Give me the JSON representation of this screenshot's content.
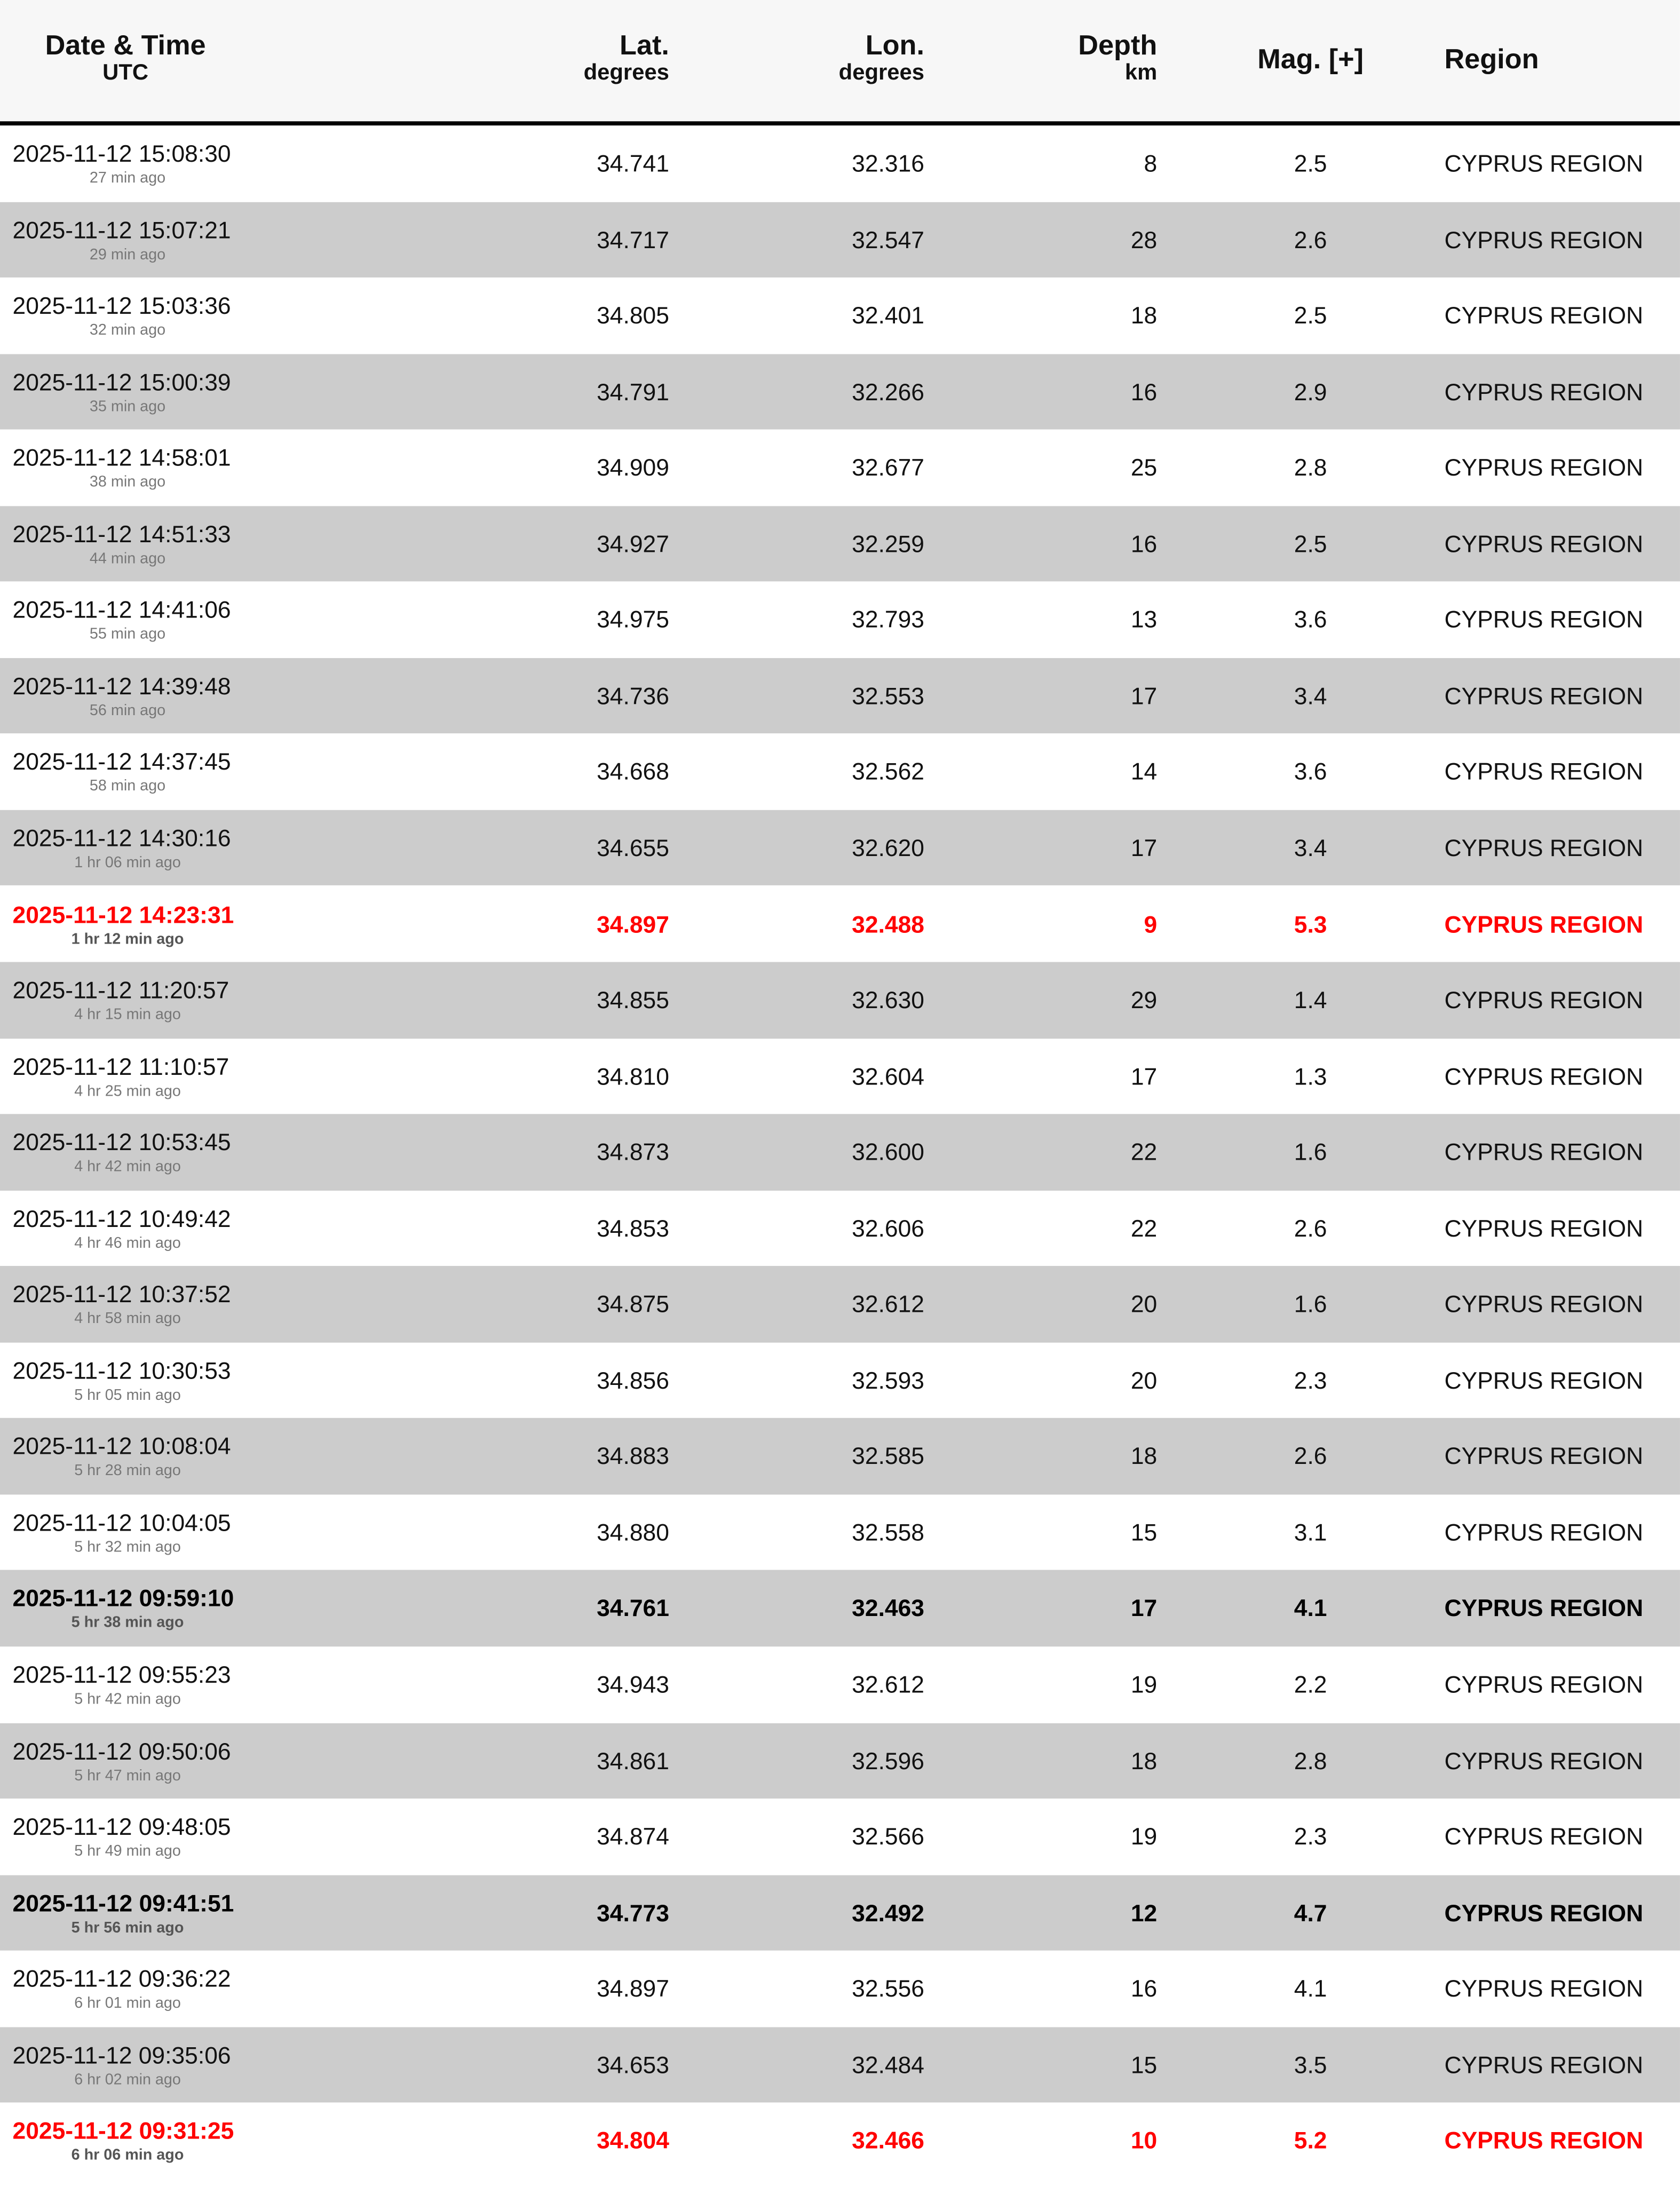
{
  "header": {
    "datetime": "Date & Time",
    "datetime_sub": "UTC",
    "lat": "Lat.",
    "lat_sub": "degrees",
    "lon": "Lon.",
    "lon_sub": "degrees",
    "depth": "Depth",
    "depth_sub": "km",
    "mag": "Mag. [+]",
    "region": "Region"
  },
  "colors": {
    "highlight_red": "#ff0000",
    "alt_row": "#cccccc",
    "header_bg": "#f7f7f7"
  },
  "rows": [
    {
      "time": "2025-11-12 15:08:30",
      "ago": "27 min ago",
      "lat": "34.741",
      "lon": "32.316",
      "depth": "8",
      "mag": "2.5",
      "region": "CYPRUS REGION",
      "style": "normal"
    },
    {
      "time": "2025-11-12 15:07:21",
      "ago": "29 min ago",
      "lat": "34.717",
      "lon": "32.547",
      "depth": "28",
      "mag": "2.6",
      "region": "CYPRUS REGION",
      "style": "normal"
    },
    {
      "time": "2025-11-12 15:03:36",
      "ago": "32 min ago",
      "lat": "34.805",
      "lon": "32.401",
      "depth": "18",
      "mag": "2.5",
      "region": "CYPRUS REGION",
      "style": "normal"
    },
    {
      "time": "2025-11-12 15:00:39",
      "ago": "35 min ago",
      "lat": "34.791",
      "lon": "32.266",
      "depth": "16",
      "mag": "2.9",
      "region": "CYPRUS REGION",
      "style": "normal"
    },
    {
      "time": "2025-11-12 14:58:01",
      "ago": "38 min ago",
      "lat": "34.909",
      "lon": "32.677",
      "depth": "25",
      "mag": "2.8",
      "region": "CYPRUS REGION",
      "style": "normal"
    },
    {
      "time": "2025-11-12 14:51:33",
      "ago": "44 min ago",
      "lat": "34.927",
      "lon": "32.259",
      "depth": "16",
      "mag": "2.5",
      "region": "CYPRUS REGION",
      "style": "normal"
    },
    {
      "time": "2025-11-12 14:41:06",
      "ago": "55 min ago",
      "lat": "34.975",
      "lon": "32.793",
      "depth": "13",
      "mag": "3.6",
      "region": "CYPRUS REGION",
      "style": "normal"
    },
    {
      "time": "2025-11-12 14:39:48",
      "ago": "56 min ago",
      "lat": "34.736",
      "lon": "32.553",
      "depth": "17",
      "mag": "3.4",
      "region": "CYPRUS REGION",
      "style": "normal"
    },
    {
      "time": "2025-11-12 14:37:45",
      "ago": "58 min ago",
      "lat": "34.668",
      "lon": "32.562",
      "depth": "14",
      "mag": "3.6",
      "region": "CYPRUS REGION",
      "style": "normal"
    },
    {
      "time": "2025-11-12 14:30:16",
      "ago": "1 hr 06 min ago",
      "lat": "34.655",
      "lon": "32.620",
      "depth": "17",
      "mag": "3.4",
      "region": "CYPRUS REGION",
      "style": "normal"
    },
    {
      "time": "2025-11-12 14:23:31",
      "ago": "1 hr 12 min ago",
      "lat": "34.897",
      "lon": "32.488",
      "depth": "9",
      "mag": "5.3",
      "region": "CYPRUS REGION",
      "style": "red"
    },
    {
      "time": "2025-11-12 11:20:57",
      "ago": "4 hr 15 min ago",
      "lat": "34.855",
      "lon": "32.630",
      "depth": "29",
      "mag": "1.4",
      "region": "CYPRUS REGION",
      "style": "normal"
    },
    {
      "time": "2025-11-12 11:10:57",
      "ago": "4 hr 25 min ago",
      "lat": "34.810",
      "lon": "32.604",
      "depth": "17",
      "mag": "1.3",
      "region": "CYPRUS REGION",
      "style": "normal"
    },
    {
      "time": "2025-11-12 10:53:45",
      "ago": "4 hr 42 min ago",
      "lat": "34.873",
      "lon": "32.600",
      "depth": "22",
      "mag": "1.6",
      "region": "CYPRUS REGION",
      "style": "normal"
    },
    {
      "time": "2025-11-12 10:49:42",
      "ago": "4 hr 46 min ago",
      "lat": "34.853",
      "lon": "32.606",
      "depth": "22",
      "mag": "2.6",
      "region": "CYPRUS REGION",
      "style": "normal"
    },
    {
      "time": "2025-11-12 10:37:52",
      "ago": "4 hr 58 min ago",
      "lat": "34.875",
      "lon": "32.612",
      "depth": "20",
      "mag": "1.6",
      "region": "CYPRUS REGION",
      "style": "normal"
    },
    {
      "time": "2025-11-12 10:30:53",
      "ago": "5 hr 05 min ago",
      "lat": "34.856",
      "lon": "32.593",
      "depth": "20",
      "mag": "2.3",
      "region": "CYPRUS REGION",
      "style": "normal"
    },
    {
      "time": "2025-11-12 10:08:04",
      "ago": "5 hr 28 min ago",
      "lat": "34.883",
      "lon": "32.585",
      "depth": "18",
      "mag": "2.6",
      "region": "CYPRUS REGION",
      "style": "normal"
    },
    {
      "time": "2025-11-12 10:04:05",
      "ago": "5 hr 32 min ago",
      "lat": "34.880",
      "lon": "32.558",
      "depth": "15",
      "mag": "3.1",
      "region": "CYPRUS REGION",
      "style": "normal"
    },
    {
      "time": "2025-11-12 09:59:10",
      "ago": "5 hr 38 min ago",
      "lat": "34.761",
      "lon": "32.463",
      "depth": "17",
      "mag": "4.1",
      "region": "CYPRUS REGION",
      "style": "bold"
    },
    {
      "time": "2025-11-12 09:55:23",
      "ago": "5 hr 42 min ago",
      "lat": "34.943",
      "lon": "32.612",
      "depth": "19",
      "mag": "2.2",
      "region": "CYPRUS REGION",
      "style": "normal"
    },
    {
      "time": "2025-11-12 09:50:06",
      "ago": "5 hr 47 min ago",
      "lat": "34.861",
      "lon": "32.596",
      "depth": "18",
      "mag": "2.8",
      "region": "CYPRUS REGION",
      "style": "normal"
    },
    {
      "time": "2025-11-12 09:48:05",
      "ago": "5 hr 49 min ago",
      "lat": "34.874",
      "lon": "32.566",
      "depth": "19",
      "mag": "2.3",
      "region": "CYPRUS REGION",
      "style": "normal"
    },
    {
      "time": "2025-11-12 09:41:51",
      "ago": "5 hr 56 min ago",
      "lat": "34.773",
      "lon": "32.492",
      "depth": "12",
      "mag": "4.7",
      "region": "CYPRUS REGION",
      "style": "bold"
    },
    {
      "time": "2025-11-12 09:36:22",
      "ago": "6 hr 01 min ago",
      "lat": "34.897",
      "lon": "32.556",
      "depth": "16",
      "mag": "4.1",
      "region": "CYPRUS REGION",
      "style": "normal"
    },
    {
      "time": "2025-11-12 09:35:06",
      "ago": "6 hr 02 min ago",
      "lat": "34.653",
      "lon": "32.484",
      "depth": "15",
      "mag": "3.5",
      "region": "CYPRUS REGION",
      "style": "normal"
    },
    {
      "time": "2025-11-12 09:31:25",
      "ago": "6 hr 06 min ago",
      "lat": "34.804",
      "lon": "32.466",
      "depth": "10",
      "mag": "5.2",
      "region": "CYPRUS REGION",
      "style": "red"
    }
  ]
}
